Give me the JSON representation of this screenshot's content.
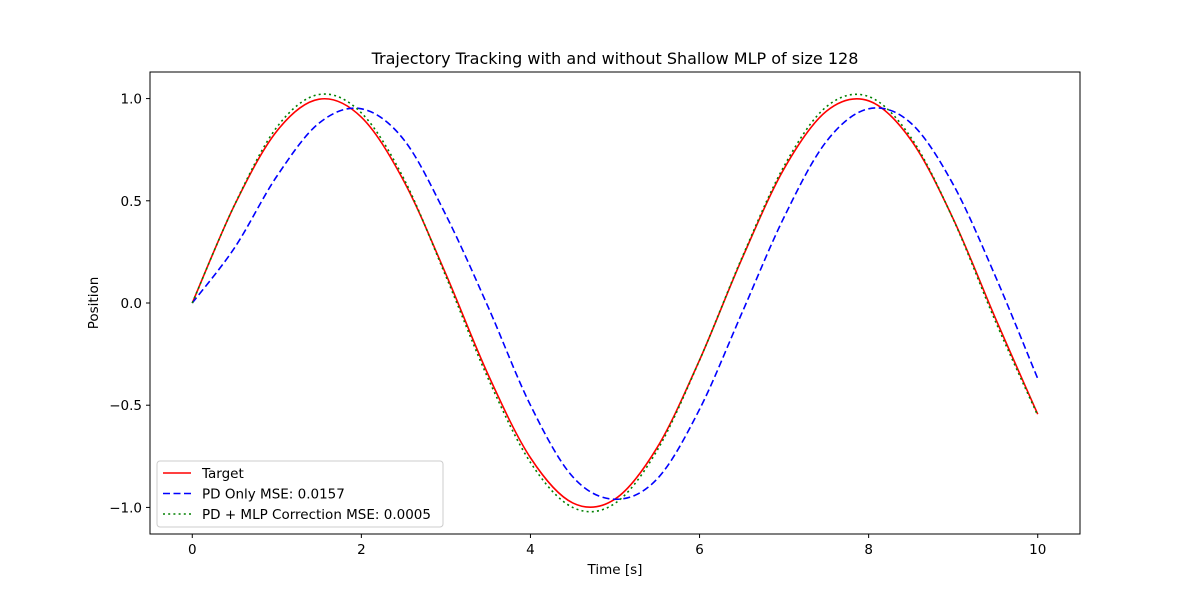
{
  "chart_data": {
    "type": "line",
    "title": "Trajectory Tracking with and without Shallow MLP of size 128",
    "xlabel": "Time [s]",
    "ylabel": "Position",
    "xlim": [
      -0.5,
      10.5
    ],
    "ylim": [
      -1.13,
      1.13
    ],
    "xticks": [
      0,
      2,
      4,
      6,
      8,
      10
    ],
    "xtick_labels": [
      "0",
      "2",
      "4",
      "6",
      "8",
      "10"
    ],
    "yticks": [
      -1.0,
      -0.5,
      0.0,
      0.5,
      1.0
    ],
    "ytick_labels": [
      "−1.0",
      "−0.5",
      "0.0",
      "0.5",
      "1.0"
    ],
    "grid": false,
    "legend_position": "lower-left",
    "x": [
      0,
      0.5,
      1,
      1.5,
      2,
      2.5,
      3,
      3.5,
      4,
      4.5,
      5,
      5.5,
      6,
      6.5,
      7,
      7.5,
      8,
      8.5,
      9,
      9.5,
      10
    ],
    "series": [
      {
        "name": "Target",
        "color": "#ff0000",
        "style": "solid",
        "values": [
          0.0,
          0.479,
          0.841,
          0.997,
          0.909,
          0.598,
          0.141,
          -0.351,
          -0.757,
          -0.978,
          -0.959,
          -0.706,
          -0.279,
          0.215,
          0.657,
          0.938,
          0.989,
          0.798,
          0.412,
          -0.075,
          -0.544
        ]
      },
      {
        "name": "PD Only MSE: 0.0157",
        "color": "#0000ff",
        "style": "dashed",
        "values": [
          0.0,
          0.27,
          0.62,
          0.88,
          0.95,
          0.8,
          0.43,
          -0.02,
          -0.5,
          -0.85,
          -0.96,
          -0.86,
          -0.52,
          -0.05,
          0.42,
          0.79,
          0.95,
          0.88,
          0.58,
          0.13,
          -0.37
        ]
      },
      {
        "name": "PD + MLP Correction MSE: 0.0005",
        "color": "#008000",
        "style": "dotted",
        "values": [
          0.0,
          0.48,
          0.86,
          1.02,
          0.93,
          0.61,
          0.13,
          -0.37,
          -0.78,
          -1.0,
          -0.98,
          -0.72,
          -0.28,
          0.22,
          0.67,
          0.96,
          1.01,
          0.81,
          0.41,
          -0.09,
          -0.55
        ]
      }
    ]
  }
}
